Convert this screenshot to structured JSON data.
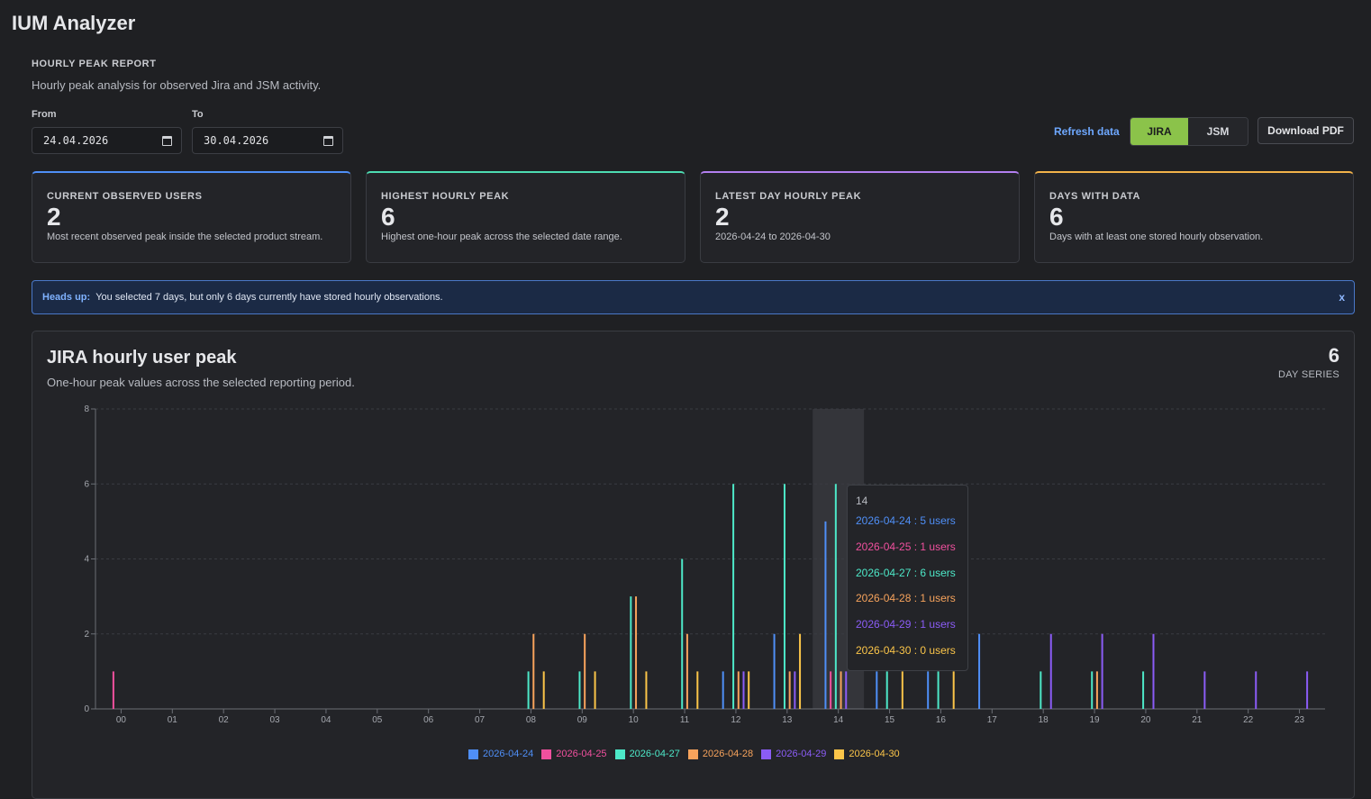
{
  "app": {
    "title": "IUM Analyzer"
  },
  "report": {
    "label": "HOURLY PEAK REPORT",
    "description": "Hourly peak analysis for observed Jira and JSM activity."
  },
  "filters": {
    "from_label": "From",
    "from_value": "24.04.2026",
    "to_label": "To",
    "to_value": "30.04.2026"
  },
  "toolbar": {
    "refresh_label": "Refresh data",
    "jira_label": "JIRA",
    "jsm_label": "JSM",
    "pdf_label": "Download PDF",
    "active_product": "JIRA"
  },
  "kpis": [
    {
      "label": "CURRENT OBSERVED USERS",
      "value": "2",
      "desc": "Most recent observed peak inside the selected product stream.",
      "accent": "#4f8ff7"
    },
    {
      "label": "HIGHEST HOURLY PEAK",
      "value": "6",
      "desc": "Highest one-hour peak across the selected date range.",
      "accent": "#4ddcb2"
    },
    {
      "label": "LATEST DAY HOURLY PEAK",
      "value": "2",
      "desc": "2026-04-24 to 2026-04-30",
      "accent": "#b37ff0"
    },
    {
      "label": "DAYS WITH DATA",
      "value": "6",
      "desc": "Days with at least one stored hourly observation.",
      "accent": "#f2b24a"
    }
  ],
  "alert": {
    "strong": "Heads up:",
    "text": "You selected 7 days, but only 6 days currently have stored hourly observations.",
    "close": "x"
  },
  "chart_card": {
    "title": "JIRA hourly user peak",
    "subtitle": "One-hour peak values across the selected reporting period.",
    "series_count": "6",
    "series_label": "DAY SERIES"
  },
  "tooltip": {
    "title": "14",
    "rows": [
      {
        "date": "2026-04-24",
        "sep": " : ",
        "value": "5 users",
        "color": "#4f8ff7"
      },
      {
        "date": "2026-04-25",
        "sep": " : ",
        "value": "1 users",
        "color": "#f0509e"
      },
      {
        "date": "2026-04-27",
        "sep": " : ",
        "value": "6 users",
        "color": "#4de8c8"
      },
      {
        "date": "2026-04-28",
        "sep": " : ",
        "value": "1 users",
        "color": "#f7a35c"
      },
      {
        "date": "2026-04-29",
        "sep": " : ",
        "value": "1 users",
        "color": "#8b5cf6"
      },
      {
        "date": "2026-04-30",
        "sep": " : ",
        "value": "0 users",
        "color": "#fbc549"
      }
    ]
  },
  "chart_data": {
    "type": "bar",
    "title": "JIRA hourly user peak",
    "xlabel": "",
    "ylabel": "",
    "ylim": [
      0,
      8
    ],
    "yticks": [
      0,
      2,
      4,
      6,
      8
    ],
    "grid": true,
    "legend": "bottom",
    "highlight_category": "14",
    "categories": [
      "00",
      "01",
      "02",
      "03",
      "04",
      "05",
      "06",
      "07",
      "08",
      "09",
      "10",
      "11",
      "12",
      "13",
      "14",
      "15",
      "16",
      "17",
      "18",
      "19",
      "20",
      "21",
      "22",
      "23"
    ],
    "series": [
      {
        "name": "2026-04-24",
        "color": "#4f8ff7",
        "values": [
          0,
          0,
          0,
          0,
          0,
          0,
          0,
          0,
          0,
          0,
          0,
          0,
          1,
          2,
          5,
          1,
          1,
          2,
          0,
          0,
          0,
          0,
          0,
          0
        ]
      },
      {
        "name": "2026-04-25",
        "color": "#f0509e",
        "values": [
          1,
          0,
          0,
          0,
          0,
          0,
          0,
          0,
          0,
          0,
          0,
          0,
          0,
          0,
          1,
          0,
          0,
          0,
          0,
          0,
          0,
          0,
          0,
          0
        ]
      },
      {
        "name": "2026-04-27",
        "color": "#4de8c8",
        "values": [
          0,
          0,
          0,
          0,
          0,
          0,
          0,
          0,
          1,
          1,
          3,
          4,
          6,
          6,
          6,
          1,
          1,
          0,
          1,
          1,
          1,
          0,
          0,
          0
        ]
      },
      {
        "name": "2026-04-28",
        "color": "#f7a35c",
        "values": [
          0,
          0,
          0,
          0,
          0,
          0,
          0,
          0,
          2,
          2,
          3,
          2,
          1,
          1,
          1,
          0,
          0,
          0,
          0,
          1,
          0,
          0,
          0,
          0
        ]
      },
      {
        "name": "2026-04-29",
        "color": "#8b5cf6",
        "values": [
          0,
          0,
          0,
          0,
          0,
          0,
          0,
          0,
          0,
          0,
          0,
          0,
          1,
          1,
          1,
          0,
          0,
          0,
          2,
          2,
          2,
          1,
          1,
          1
        ]
      },
      {
        "name": "2026-04-30",
        "color": "#fbc549",
        "values": [
          0,
          0,
          0,
          0,
          0,
          0,
          0,
          0,
          1,
          1,
          1,
          1,
          1,
          2,
          0,
          1,
          1,
          0,
          0,
          0,
          0,
          0,
          0,
          0
        ]
      }
    ]
  }
}
